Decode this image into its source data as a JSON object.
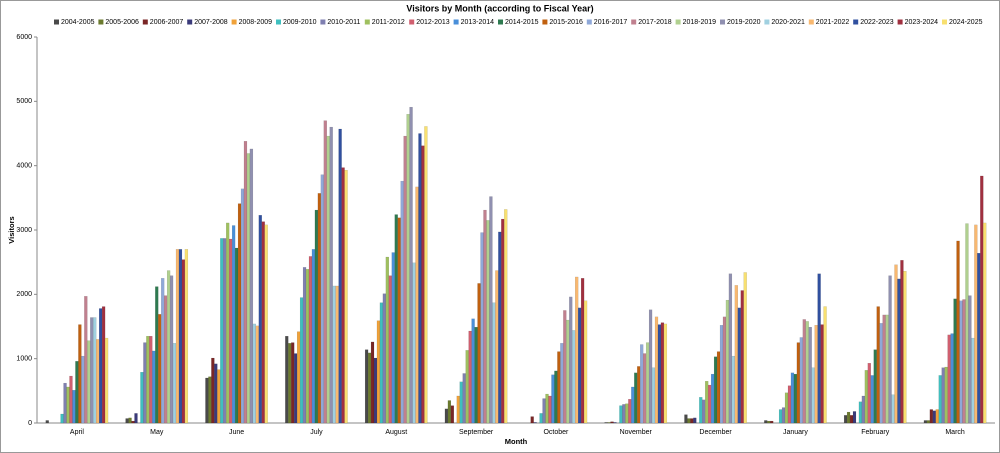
{
  "chart_data": {
    "type": "bar",
    "title": "Visitors by Month (according to Fiscal Year)",
    "x_label": "Month",
    "y_label": "Visitors",
    "categories": [
      "April",
      "May",
      "June",
      "July",
      "August",
      "September",
      "October",
      "November",
      "December",
      "January",
      "February",
      "March"
    ],
    "ylim": [
      0,
      6000
    ],
    "yticks": [
      0,
      1000,
      2000,
      3000,
      4000,
      5000,
      6000
    ],
    "grid": false,
    "legend": "top",
    "series": [
      {
        "name": "2004-2005",
        "color": "#4a4a4a",
        "values": [
          40,
          70,
          700,
          1350,
          1140,
          220,
          0,
          10,
          130,
          40,
          120,
          40
        ]
      },
      {
        "name": "2005-2006",
        "color": "#6b7a2e",
        "values": [
          0,
          80,
          720,
          1240,
          1090,
          350,
          0,
          10,
          70,
          30,
          170,
          40
        ]
      },
      {
        "name": "2006-2007",
        "color": "#7a2626",
        "values": [
          0,
          30,
          1010,
          1250,
          1260,
          270,
          100,
          20,
          70,
          30,
          120,
          210
        ]
      },
      {
        "name": "2007-2008",
        "color": "#3a3a7a",
        "values": [
          0,
          150,
          920,
          1080,
          1010,
          0,
          10,
          10,
          80,
          0,
          180,
          190
        ]
      },
      {
        "name": "2008-2009",
        "color": "#f0a23a",
        "values": [
          0,
          0,
          830,
          1420,
          1590,
          420,
          0,
          0,
          0,
          0,
          0,
          210
        ]
      },
      {
        "name": "2009-2010",
        "color": "#3fbfbf",
        "values": [
          140,
          790,
          2870,
          1950,
          1870,
          640,
          150,
          270,
          400,
          210,
          330,
          740
        ]
      },
      {
        "name": "2010-2011",
        "color": "#7f7fb0",
        "values": [
          620,
          1250,
          2870,
          2420,
          2010,
          770,
          380,
          290,
          360,
          240,
          420,
          860
        ]
      },
      {
        "name": "2011-2012",
        "color": "#9fc05f",
        "values": [
          560,
          1350,
          3110,
          2390,
          2580,
          1130,
          450,
          300,
          650,
          470,
          820,
          870
        ]
      },
      {
        "name": "2012-2013",
        "color": "#d05f6f",
        "values": [
          730,
          1350,
          2860,
          2590,
          2290,
          1430,
          420,
          370,
          590,
          580,
          930,
          1370
        ]
      },
      {
        "name": "2013-2014",
        "color": "#4a8fd9",
        "values": [
          510,
          1120,
          3070,
          2700,
          2650,
          1620,
          750,
          560,
          760,
          780,
          740,
          1390
        ]
      },
      {
        "name": "2014-2015",
        "color": "#2e7a50",
        "values": [
          960,
          2120,
          2720,
          3310,
          3240,
          1490,
          810,
          780,
          1030,
          760,
          1140,
          1930
        ]
      },
      {
        "name": "2015-2016",
        "color": "#c0600f",
        "values": [
          1530,
          1690,
          3410,
          3570,
          3190,
          2170,
          1110,
          880,
          1110,
          1250,
          1810,
          2830
        ]
      },
      {
        "name": "2016-2017",
        "color": "#8fa8d8",
        "values": [
          1040,
          2250,
          3640,
          3860,
          3760,
          2960,
          1240,
          1220,
          1520,
          1330,
          1550,
          1900
        ]
      },
      {
        "name": "2017-2018",
        "color": "#c0808f",
        "values": [
          1970,
          1980,
          4380,
          4700,
          4460,
          3310,
          1750,
          1080,
          1650,
          1610,
          1680,
          1920
        ]
      },
      {
        "name": "2018-2019",
        "color": "#b0d08f",
        "values": [
          1280,
          2370,
          4190,
          4460,
          4800,
          3150,
          1600,
          1250,
          1910,
          1580,
          1680,
          3100
        ]
      },
      {
        "name": "2019-2020",
        "color": "#9090b0",
        "values": [
          1640,
          2290,
          4260,
          4600,
          4910,
          3520,
          1960,
          1760,
          2320,
          1490,
          2290,
          1980
        ]
      },
      {
        "name": "2020-2021",
        "color": "#a0d0e0",
        "values": [
          1640,
          1240,
          1540,
          2130,
          2490,
          1870,
          1440,
          860,
          1040,
          860,
          440,
          1320
        ]
      },
      {
        "name": "2021-2022",
        "color": "#f8b870",
        "values": [
          1300,
          2700,
          1510,
          2130,
          3670,
          2370,
          2270,
          1650,
          2140,
          1520,
          2460,
          3080
        ]
      },
      {
        "name": "2022-2023",
        "color": "#30509f",
        "values": [
          1780,
          2700,
          3230,
          4570,
          4500,
          2970,
          1790,
          1530,
          1790,
          2320,
          2240,
          2640
        ]
      },
      {
        "name": "2023-2024",
        "color": "#a0303f",
        "values": [
          1810,
          2540,
          3130,
          3970,
          4310,
          3170,
          2250,
          1560,
          2060,
          1530,
          2530,
          3840
        ]
      },
      {
        "name": "2024-2025",
        "color": "#f8e070",
        "values": [
          1320,
          2700,
          3080,
          3930,
          4610,
          3320,
          1900,
          1540,
          2340,
          1810,
          2360,
          3110
        ]
      }
    ]
  }
}
